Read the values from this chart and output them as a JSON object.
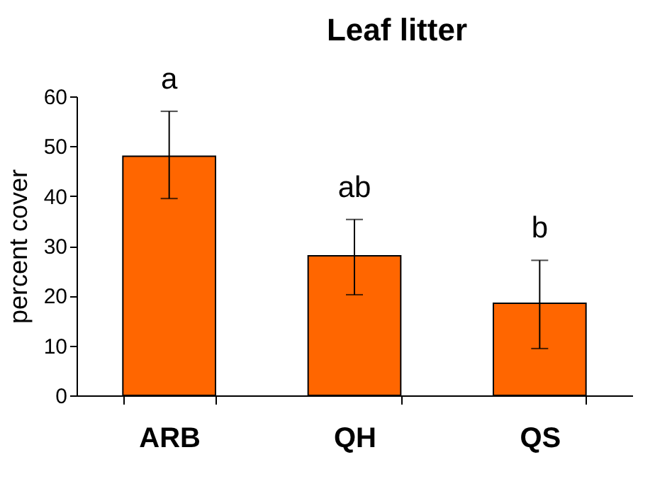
{
  "chart_data": {
    "type": "bar",
    "title": "Leaf litter",
    "ylabel": "percent cover",
    "categories": [
      "ARB",
      "QH",
      "QS"
    ],
    "values": [
      48,
      28,
      18.5
    ],
    "color": "#ff6600",
    "errors": [
      [
        39.5,
        57
      ],
      [
        20.2,
        35.3
      ],
      [
        9.4,
        27.1
      ]
    ],
    "ylim": [
      0,
      60
    ],
    "yticks": [
      0,
      10,
      20,
      30,
      40,
      50,
      60
    ],
    "grid": false,
    "annotations": [
      "a",
      "ab",
      "b"
    ]
  }
}
